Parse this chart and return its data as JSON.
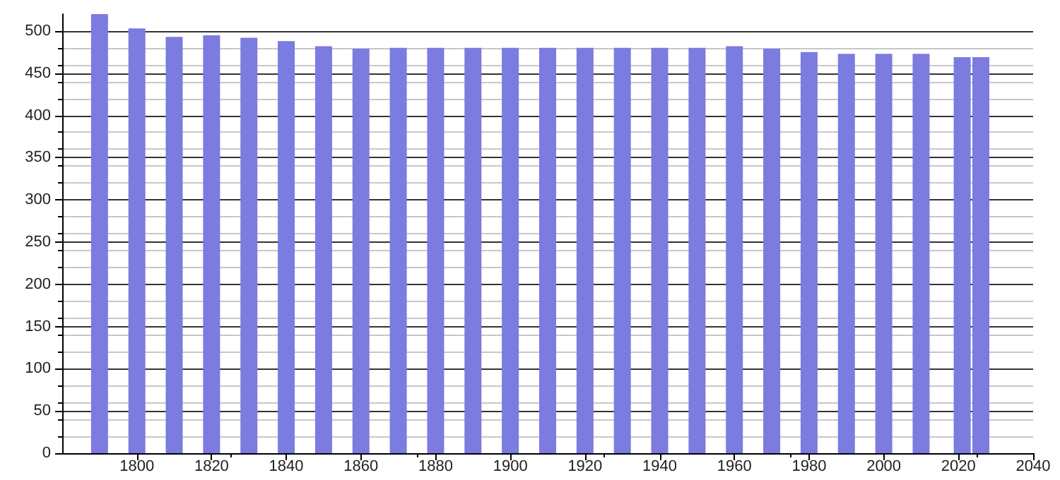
{
  "chart_data": {
    "type": "bar",
    "x": [
      1790,
      1800,
      1810,
      1820,
      1830,
      1840,
      1850,
      1860,
      1870,
      1880,
      1890,
      1900,
      1910,
      1920,
      1930,
      1940,
      1950,
      1960,
      1970,
      1980,
      1990,
      2000,
      2010,
      2021,
      2026
    ],
    "values": [
      520,
      503,
      493,
      495,
      492,
      488,
      482,
      479,
      480,
      480,
      480,
      480,
      480,
      480,
      480,
      480,
      480,
      482,
      479,
      475,
      473,
      473,
      473,
      469,
      469
    ],
    "color": "#7b7be0",
    "xlim": [
      1780,
      2040
    ],
    "xticks": [
      1800,
      1820,
      1840,
      1860,
      1880,
      1900,
      1920,
      1940,
      1960,
      1980,
      2000,
      2020,
      2040
    ],
    "ylim": [
      0,
      520
    ],
    "yticks": [
      0,
      50,
      100,
      150,
      200,
      250,
      300,
      350,
      400,
      450,
      500
    ],
    "grid": "y"
  }
}
